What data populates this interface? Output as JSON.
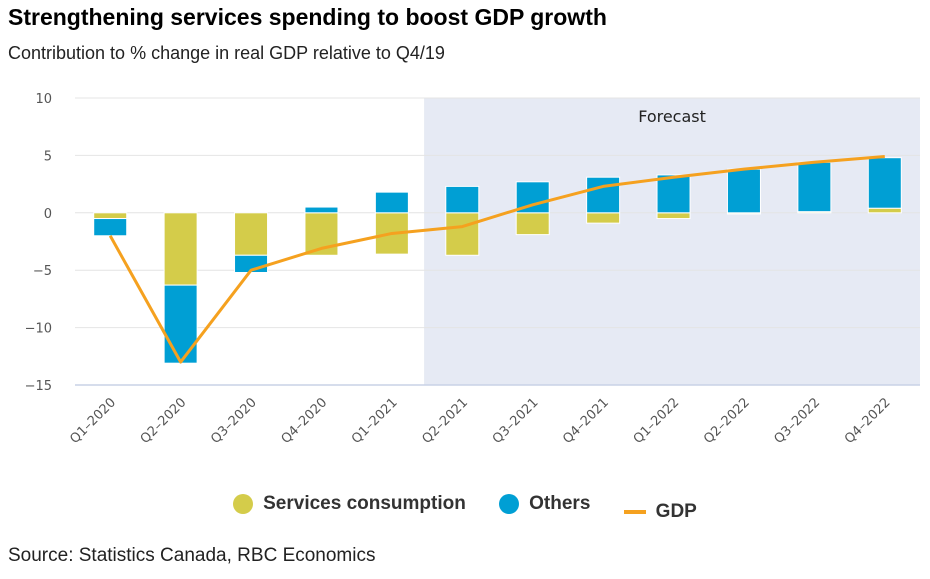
{
  "header": {
    "title": "Strengthening services spending to boost GDP growth",
    "subtitle": "Contribution to % change in real GDP relative to Q4/19"
  },
  "source": "Source: Statistics Canada, RBC Economics",
  "colors": {
    "services": "#d4cc4a",
    "others": "#009fd4",
    "gdp": "#f5a11f",
    "forecast_band": "#e6eaf4",
    "grid": "#e4e4e4"
  },
  "chart_data": {
    "type": "bar",
    "stacked": true,
    "title": "Strengthening services spending to boost GDP growth",
    "subtitle": "Contribution to % change in real GDP relative to Q4/19",
    "xlabel": "",
    "ylabel": "",
    "ylim": [
      -15,
      10
    ],
    "yticks": [
      10,
      5,
      0,
      -5,
      -10,
      -15
    ],
    "ytick_labels": [
      "10",
      "5",
      "0",
      "−5",
      "−10",
      "−15"
    ],
    "grid": true,
    "legend_position": "bottom",
    "categories": [
      "Q1–2020",
      "Q2–2020",
      "Q3–2020",
      "Q4–2020",
      "Q1–2021",
      "Q2–2021",
      "Q3–2021",
      "Q4–2021",
      "Q1–2022",
      "Q2–2022",
      "Q3–2022",
      "Q4–2022"
    ],
    "series": [
      {
        "name": "Services consumption",
        "type": "bar",
        "values": [
          -0.5,
          -6.3,
          -3.7,
          -3.7,
          -3.6,
          -3.7,
          -1.9,
          -0.9,
          -0.5,
          -0.1,
          0.1,
          0.4
        ]
      },
      {
        "name": "Others",
        "type": "bar",
        "values": [
          -1.5,
          -6.8,
          -1.5,
          0.5,
          1.8,
          2.3,
          2.7,
          3.1,
          3.3,
          3.8,
          4.3,
          4.4
        ]
      },
      {
        "name": "GDP",
        "type": "line",
        "values": [
          -2.0,
          -13.0,
          -5.0,
          -3.1,
          -1.8,
          -1.2,
          0.7,
          2.3,
          3.1,
          3.8,
          4.4,
          4.9
        ]
      }
    ],
    "annotations": [
      {
        "text": "Forecast",
        "type": "shaded-region",
        "from_category": "Q2–2021",
        "to_category": "Q4–2022"
      }
    ]
  }
}
